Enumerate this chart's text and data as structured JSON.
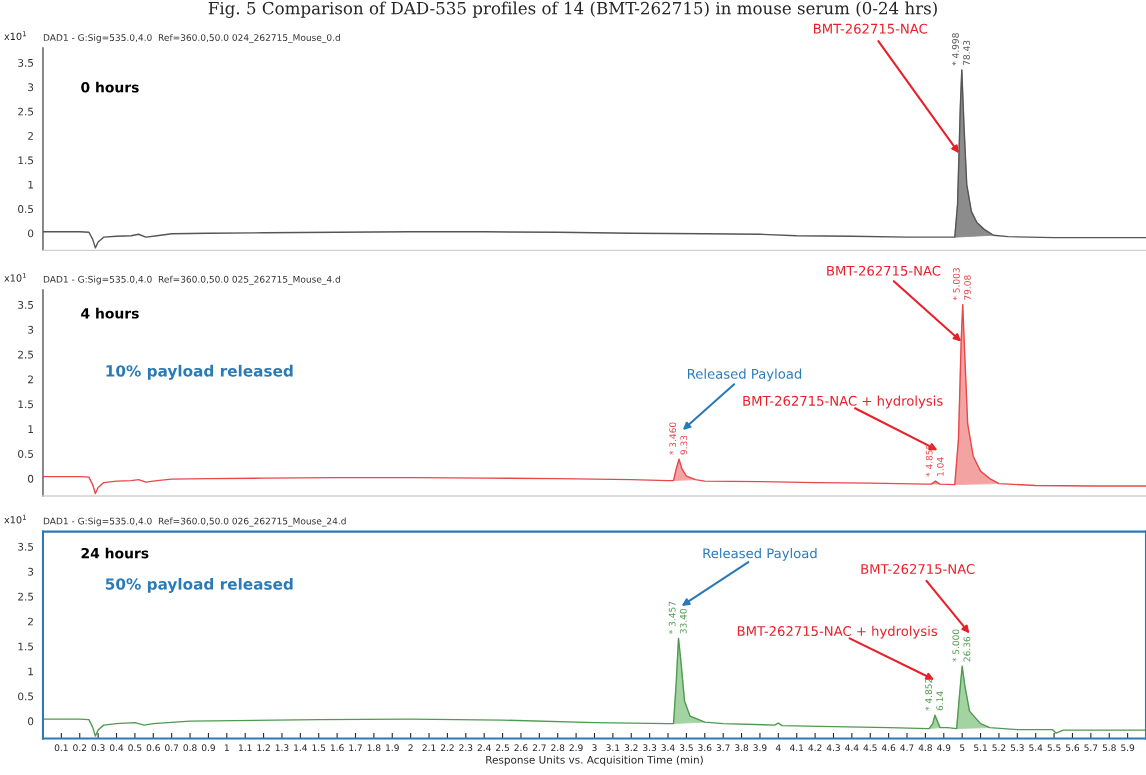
{
  "chart_data": [
    {
      "type": "line",
      "title": "Fig. 5 Comparison of DAD-535 profiles of 14 (BMT-262715) in mouse serum (0-24 hrs)",
      "subtitle": "DAD1 - G:Sig=535.0,4.0  Ref=360.0,50.0 024_262715_Mouse_0.d",
      "ylabel": "x10$^{1}$",
      "xlim": [
        0,
        6
      ],
      "xticks": [
        0.1,
        0.2,
        0.3,
        0.4,
        0.5,
        0.6,
        0.7,
        0.8,
        0.9,
        1,
        1.1,
        1.2,
        1.3,
        1.4,
        1.5,
        1.6,
        1.7,
        1.8,
        1.9,
        2,
        2.1,
        2.2,
        2.3,
        2.4,
        2.5,
        2.6,
        2.7,
        2.8,
        2.9,
        3,
        3.1,
        3.2,
        3.3,
        3.4,
        3.5,
        3.6,
        3.7,
        3.8,
        3.9,
        4,
        4.1,
        4.2,
        4.3,
        4.4,
        4.5,
        4.6,
        4.7,
        4.8,
        4.9,
        5,
        5.1,
        5.2,
        5.3,
        5.4,
        5.5,
        5.6,
        5.7,
        5.8,
        5.9
      ],
      "ylim": [
        -0.35,
        3.8
      ],
      "yticks": [
        0,
        0.5,
        1,
        1.5,
        2,
        2.5,
        3,
        3.5
      ],
      "tick_labels": "y",
      "grid": false,
      "legend": false,
      "series": [
        {
          "color": "#555555",
          "x": [
            0.0,
            0.1,
            0.2,
            0.25,
            0.27,
            0.285,
            0.3,
            0.33,
            0.4,
            0.48,
            0.52,
            0.56,
            0.62,
            0.7,
            0.9,
            1.2,
            1.6,
            2.0,
            2.4,
            2.8,
            3.2,
            3.6,
            3.9,
            4.1,
            4.4,
            4.7,
            4.85,
            4.96,
            4.975,
            4.99,
            4.998,
            5.01,
            5.025,
            5.05,
            5.08,
            5.12,
            5.17,
            5.25,
            5.5,
            5.8,
            6.0
          ],
          "values": [
            0.03,
            0.03,
            0.03,
            0.02,
            -0.12,
            -0.3,
            -0.18,
            -0.08,
            -0.06,
            -0.05,
            -0.02,
            -0.08,
            -0.05,
            -0.01,
            0.0,
            0.01,
            0.02,
            0.03,
            0.03,
            0.02,
            0.0,
            -0.01,
            -0.02,
            -0.05,
            -0.06,
            -0.08,
            -0.08,
            -0.08,
            0.6,
            2.6,
            3.35,
            2.2,
            1.0,
            0.45,
            0.22,
            0.08,
            -0.04,
            -0.07,
            -0.09,
            -0.09,
            -0.09
          ]
        },
        {
          "type": "area",
          "color": "#8c8c8c",
          "x": [
            4.96,
            4.975,
            4.99,
            4.998,
            5.01,
            5.025,
            5.05,
            5.08,
            5.12,
            5.17
          ],
          "values": [
            -0.08,
            0.6,
            2.6,
            3.35,
            2.2,
            1.0,
            0.45,
            0.22,
            0.08,
            -0.04
          ]
        }
      ],
      "annotations": [
        "0 hours",
        {
          "text": "BMT-262715-NAC",
          "x": 4.983,
          "y": 1.64
        },
        {
          "text": "* 4.998",
          "x": 4.998,
          "y": 3.35
        },
        {
          "text": "78.43",
          "x": 4.998,
          "y": 3.35
        }
      ]
    },
    {
      "type": "line",
      "subtitle": "DAD1 - G:Sig=535.0,4.0  Ref=360.0,50.0 025_262715_Mouse_4.d",
      "ylabel": "x10$^{1}$",
      "xlim": [
        0,
        6
      ],
      "xticks": [
        0.1,
        0.2,
        0.3,
        0.4,
        0.5,
        0.6,
        0.7,
        0.8,
        0.9,
        1,
        1.1,
        1.2,
        1.3,
        1.4,
        1.5,
        1.6,
        1.7,
        1.8,
        1.9,
        2,
        2.1,
        2.2,
        2.3,
        2.4,
        2.5,
        2.6,
        2.7,
        2.8,
        2.9,
        3,
        3.1,
        3.2,
        3.3,
        3.4,
        3.5,
        3.6,
        3.7,
        3.8,
        3.9,
        4,
        4.1,
        4.2,
        4.3,
        4.4,
        4.5,
        4.6,
        4.7,
        4.8,
        4.9,
        5,
        5.1,
        5.2,
        5.3,
        5.4,
        5.5,
        5.6,
        5.7,
        5.8,
        5.9
      ],
      "ylim": [
        -0.35,
        3.8
      ],
      "yticks": [
        0,
        0.5,
        1,
        1.5,
        2,
        2.5,
        3,
        3.5
      ],
      "tick_labels": "y",
      "grid": false,
      "legend": false,
      "series": [
        {
          "color": "#e8474c",
          "x": [
            0.0,
            0.1,
            0.2,
            0.25,
            0.27,
            0.285,
            0.3,
            0.33,
            0.4,
            0.48,
            0.52,
            0.56,
            0.62,
            0.7,
            0.9,
            1.2,
            1.6,
            2.0,
            2.4,
            2.8,
            3.2,
            3.4,
            3.43,
            3.445,
            3.46,
            3.475,
            3.5,
            3.55,
            3.6,
            3.9,
            4.2,
            4.5,
            4.8,
            4.83,
            4.845,
            4.855,
            4.87,
            4.88,
            4.96,
            4.98,
            4.995,
            5.003,
            5.015,
            5.03,
            5.06,
            5.1,
            5.15,
            5.2,
            5.4,
            5.7,
            6.0
          ],
          "values": [
            0.04,
            0.04,
            0.04,
            0.03,
            -0.12,
            -0.3,
            -0.18,
            -0.08,
            -0.05,
            -0.04,
            -0.02,
            -0.07,
            -0.04,
            -0.01,
            0.0,
            0.01,
            0.02,
            0.02,
            0.01,
            0.0,
            -0.02,
            -0.04,
            -0.04,
            0.2,
            0.39,
            0.2,
            0.05,
            -0.02,
            -0.05,
            -0.06,
            -0.08,
            -0.09,
            -0.11,
            -0.11,
            -0.08,
            -0.05,
            -0.09,
            -0.11,
            -0.12,
            0.8,
            2.8,
            3.5,
            2.4,
            1.1,
            0.45,
            0.15,
            0.0,
            -0.1,
            -0.14,
            -0.15,
            -0.15
          ]
        },
        {
          "type": "area",
          "color": "#f4a3a3",
          "x": [
            3.43,
            3.445,
            3.46,
            3.475,
            3.5,
            3.55
          ],
          "values": [
            -0.04,
            0.2,
            0.39,
            0.2,
            0.05,
            -0.02
          ]
        },
        {
          "type": "area",
          "color": "#f4a3a3",
          "x": [
            4.83,
            4.845,
            4.855,
            4.87,
            4.88
          ],
          "values": [
            -0.11,
            -0.08,
            -0.05,
            -0.09,
            -0.11
          ]
        },
        {
          "type": "area",
          "color": "#f4a3a3",
          "x": [
            4.96,
            4.98,
            4.995,
            5.003,
            5.015,
            5.03,
            5.06,
            5.1,
            5.15,
            5.2
          ],
          "values": [
            -0.12,
            0.8,
            2.8,
            3.5,
            2.4,
            1.1,
            0.45,
            0.15,
            0.0,
            -0.1
          ]
        }
      ],
      "annotations": [
        "4 hours",
        "10% payload released",
        "Released Payload",
        "BMT-262715-NAC + hydrolysis",
        {
          "text": "BMT-262715-NAC",
          "x": 4.995,
          "y": 2.76
        },
        {
          "text": "* 3.460",
          "x": 3.46,
          "y": 0.39
        },
        {
          "text": "9.33",
          "x": 3.46,
          "y": 0.39
        },
        {
          "text": "* 4.855",
          "x": 4.855,
          "y": -0.05
        },
        {
          "text": "1.04",
          "x": 4.855,
          "y": -0.05
        },
        {
          "text": "* 5.003",
          "x": 5.003,
          "y": 3.5
        },
        {
          "text": "79.08",
          "x": 5.003,
          "y": 3.5
        }
      ]
    },
    {
      "type": "line",
      "subtitle": "DAD1 - G:Sig=535.0,4.0  Ref=360.0,50.0 026_262715_Mouse_24.d",
      "ylabel": "x10$^{1}$",
      "xlabel": "Response Units vs. Acquisition Time (min)",
      "xlim": [
        0,
        6
      ],
      "xticks": [
        0.1,
        0.2,
        0.3,
        0.4,
        0.5,
        0.6,
        0.7,
        0.8,
        0.9,
        1,
        1.1,
        1.2,
        1.3,
        1.4,
        1.5,
        1.6,
        1.7,
        1.8,
        1.9,
        2,
        2.1,
        2.2,
        2.3,
        2.4,
        2.5,
        2.6,
        2.7,
        2.8,
        2.9,
        3,
        3.1,
        3.2,
        3.3,
        3.4,
        3.5,
        3.6,
        3.7,
        3.8,
        3.9,
        4,
        4.1,
        4.2,
        4.3,
        4.4,
        4.5,
        4.6,
        4.7,
        4.8,
        4.9,
        5,
        5.1,
        5.2,
        5.3,
        5.4,
        5.5,
        5.6,
        5.7,
        5.8,
        5.9
      ],
      "ylim": [
        -0.35,
        3.8
      ],
      "yticks": [
        0,
        0.5,
        1,
        1.5,
        2,
        2.5,
        3,
        3.5
      ],
      "grid": false,
      "legend": false,
      "series": [
        {
          "color": "#4f9a4f",
          "x": [
            0.0,
            0.2,
            0.25,
            0.27,
            0.285,
            0.3,
            0.33,
            0.4,
            0.5,
            0.55,
            0.6,
            0.8,
            1.5,
            2.0,
            2.5,
            3.0,
            3.4,
            3.43,
            3.445,
            3.457,
            3.47,
            3.49,
            3.52,
            3.6,
            3.7,
            3.98,
            4.0,
            4.02,
            4.3,
            4.6,
            4.82,
            4.84,
            4.852,
            4.865,
            4.88,
            4.92,
            4.97,
            4.985,
            5.0,
            5.015,
            5.04,
            5.1,
            5.15,
            5.3,
            5.49,
            5.51,
            5.55,
            5.8,
            6.0
          ],
          "values": [
            0.04,
            0.04,
            0.03,
            -0.12,
            -0.3,
            -0.18,
            -0.08,
            -0.05,
            -0.03,
            -0.08,
            -0.05,
            0.0,
            0.03,
            0.04,
            0.02,
            -0.03,
            -0.05,
            -0.05,
            0.8,
            1.66,
            1.2,
            0.4,
            0.1,
            -0.02,
            -0.05,
            -0.08,
            -0.04,
            -0.09,
            -0.11,
            -0.13,
            -0.15,
            -0.05,
            0.12,
            0.0,
            -0.13,
            -0.13,
            -0.15,
            0.5,
            1.1,
            0.7,
            0.2,
            -0.05,
            -0.13,
            -0.17,
            -0.17,
            -0.24,
            -0.18,
            -0.18,
            -0.18
          ]
        },
        {
          "type": "area",
          "color": "#a3d3a3",
          "x": [
            3.43,
            3.445,
            3.457,
            3.47,
            3.49,
            3.52,
            3.6
          ],
          "values": [
            -0.05,
            0.8,
            1.66,
            1.2,
            0.4,
            0.1,
            -0.02
          ]
        },
        {
          "type": "area",
          "color": "#a3d3a3",
          "x": [
            4.82,
            4.84,
            4.852,
            4.865,
            4.88
          ],
          "values": [
            -0.15,
            -0.05,
            0.12,
            0.0,
            -0.13
          ]
        },
        {
          "type": "area",
          "color": "#a3d3a3",
          "x": [
            4.97,
            4.985,
            5.0,
            5.015,
            5.04,
            5.1,
            5.15
          ],
          "values": [
            -0.15,
            0.5,
            1.1,
            0.7,
            0.2,
            -0.05,
            -0.13
          ]
        }
      ],
      "annotations": [
        "24 hours",
        "50% payload released",
        "Released Payload",
        "BMT-262715-NAC + hydrolysis",
        "BMT-262715-NAC",
        {
          "text": "* 3.457",
          "x": 3.457,
          "y": 1.66
        },
        {
          "text": "33.40",
          "x": 3.457,
          "y": 1.66
        },
        {
          "text": "* 4.852",
          "x": 4.852,
          "y": 0.12
        },
        {
          "text": "6.14",
          "x": 4.852,
          "y": 0.12
        },
        {
          "text": "* 5.000",
          "x": 5.0,
          "y": 1.1
        },
        {
          "text": "26.36",
          "x": 5.0,
          "y": 1.1
        }
      ]
    }
  ]
}
